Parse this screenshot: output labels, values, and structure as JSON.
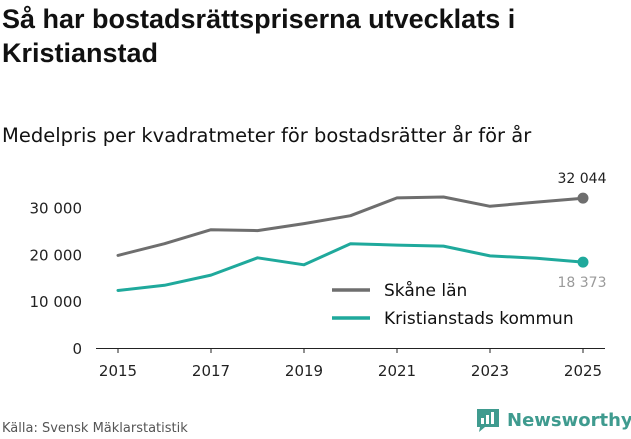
{
  "title": "Så har bostadsrättspriserna utvecklats i Kristianstad",
  "subtitle": "Medelpris per kvadratmeter för bostadsrätter år för år",
  "source": "Källa: Svensk Mäklarstatistik",
  "brand": "Newsworthy",
  "chart_data": {
    "type": "line",
    "title": "Så har bostadsrättspriserna utvecklats i Kristianstad",
    "subtitle": "Medelpris per kvadratmeter för bostadsrätter år för år",
    "xlabel": "",
    "ylabel": "",
    "x": [
      2015,
      2016,
      2017,
      2018,
      2019,
      2020,
      2021,
      2022,
      2023,
      2024,
      2025
    ],
    "xticks": [
      "2015",
      "2017",
      "2019",
      "2021",
      "2023",
      "2025"
    ],
    "yticks": [
      0,
      10000,
      20000,
      30000
    ],
    "ytick_labels": [
      "0",
      "10 000",
      "20 000",
      "30 000"
    ],
    "ylim": [
      0,
      37000
    ],
    "grid": false,
    "legend_position": "bottom-right",
    "series": [
      {
        "name": "Skåne län",
        "color": "#6e6e6e",
        "values": [
          19800,
          22300,
          25300,
          25100,
          26600,
          28300,
          32100,
          32300,
          30300,
          31200,
          32044
        ],
        "end_label": "32 044"
      },
      {
        "name": "Kristianstads kommun",
        "color": "#1fa99c",
        "values": [
          12300,
          13400,
          15600,
          19300,
          17800,
          22300,
          22000,
          21800,
          19700,
          19200,
          18373
        ],
        "end_label": "18 373"
      }
    ]
  }
}
